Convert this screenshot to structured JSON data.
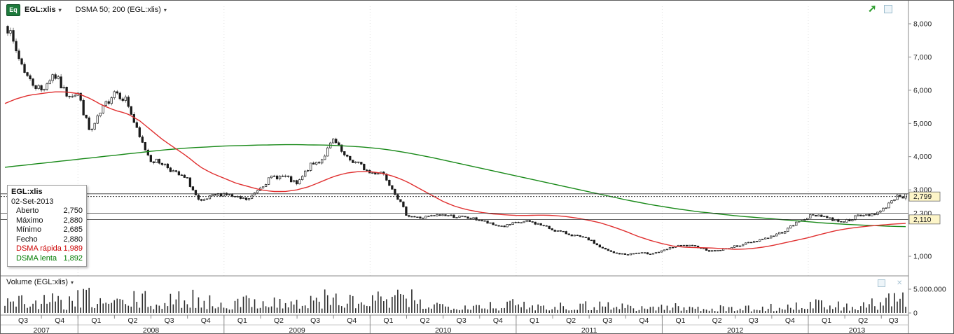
{
  "toolbar": {
    "badge": "Eq",
    "symbol": "EGL:xlis",
    "indicator": "DSMA 50; 200 (EGL:xlis)"
  },
  "icons": {
    "caret_down": "▾",
    "trend_arrow": "➚",
    "close": "✕"
  },
  "tooltip": {
    "title": "EGL:xlis",
    "date": "02-Set-2013",
    "rows": [
      {
        "label": "Aberto",
        "value": "2,750"
      },
      {
        "label": "Máximo",
        "value": "2,880"
      },
      {
        "label": "Mínimo",
        "value": "2,685"
      },
      {
        "label": "Fecho",
        "value": "2,880"
      },
      {
        "label": "DSMA rápida",
        "value": "1,989"
      },
      {
        "label": "DSMA lenta",
        "value": "1,892"
      }
    ]
  },
  "volume_header": {
    "label": "Volume (EGL:xlis)"
  },
  "chart_data": {
    "type": "candlestick",
    "symbol": "EGL:xlis",
    "interval": "weekly",
    "range": {
      "start": "2007-07",
      "end": "2013-09"
    },
    "seed": 7,
    "colors": {
      "sma_fast": "#e03030",
      "sma_slow": "#1a8a1a",
      "candle": "#1a1a1a",
      "grid": "#e0e0e0"
    },
    "y_axis": {
      "ticks": [
        {
          "v": 8000,
          "label": "8,000"
        },
        {
          "v": 7000,
          "label": "7,000"
        },
        {
          "v": 6000,
          "label": "6,000"
        },
        {
          "v": 5000,
          "label": "5,000"
        },
        {
          "v": 4000,
          "label": "4,000"
        },
        {
          "v": 3000,
          "label": "3,000"
        },
        {
          "v": 1000,
          "label": "1,000"
        }
      ]
    },
    "price_markers": [
      {
        "v": 2799,
        "label": "2,799",
        "boxed": true
      },
      {
        "v": 2300,
        "label": "2,300",
        "boxed": false
      },
      {
        "v": 2110,
        "label": "2,110",
        "boxed": true
      }
    ],
    "h_lines": [
      {
        "value": 2880,
        "style": "solid"
      },
      {
        "value": 2799,
        "style": "dotted"
      },
      {
        "value": 2300,
        "style": "solid"
      },
      {
        "value": 2110,
        "style": "solid"
      }
    ],
    "last_candle": {
      "open": 2750,
      "high": 2880,
      "low": 2685,
      "close": 2880
    },
    "monthly_close_anchors": [
      8100,
      7100,
      6300,
      6000,
      6500,
      5900,
      5900,
      4700,
      5400,
      6000,
      5700,
      4600,
      3900,
      3800,
      3500,
      3300,
      2600,
      2800,
      2900,
      2750,
      2700,
      3100,
      3400,
      3400,
      3150,
      3700,
      3900,
      4500,
      3950,
      3800,
      3500,
      3550,
      2950,
      2250,
      2150,
      2200,
      2250,
      2200,
      2150,
      2100,
      1950,
      1900,
      2000,
      2050,
      1950,
      1800,
      1700,
      1600,
      1500,
      1250,
      1100,
      1050,
      1100,
      1080,
      1150,
      1300,
      1320,
      1280,
      1150,
      1200,
      1300,
      1400,
      1500,
      1600,
      1750,
      2000,
      2200,
      2250,
      2100,
      2050,
      2200,
      2250,
      2350,
      2750,
      2880
    ],
    "sma_fast_monthly": [
      5600,
      5750,
      5850,
      5900,
      5950,
      5950,
      5900,
      5750,
      5550,
      5400,
      5300,
      5100,
      4800,
      4500,
      4250,
      4000,
      3700,
      3500,
      3350,
      3200,
      3100,
      3000,
      2950,
      2950,
      3000,
      3100,
      3250,
      3400,
      3500,
      3550,
      3550,
      3500,
      3400,
      3250,
      3050,
      2850,
      2650,
      2500,
      2400,
      2330,
      2280,
      2250,
      2230,
      2230,
      2240,
      2230,
      2200,
      2150,
      2080,
      2000,
      1880,
      1750,
      1600,
      1480,
      1380,
      1300,
      1270,
      1260,
      1250,
      1230,
      1210,
      1220,
      1260,
      1320,
      1400,
      1480,
      1560,
      1660,
      1750,
      1820,
      1870,
      1910,
      1940,
      1970,
      1989
    ],
    "sma_slow_monthly": [
      3680,
      3720,
      3760,
      3800,
      3840,
      3880,
      3920,
      3960,
      4000,
      4040,
      4080,
      4120,
      4160,
      4200,
      4230,
      4260,
      4280,
      4300,
      4320,
      4330,
      4340,
      4350,
      4355,
      4360,
      4360,
      4355,
      4350,
      4340,
      4320,
      4300,
      4270,
      4230,
      4180,
      4120,
      4050,
      3980,
      3900,
      3820,
      3740,
      3660,
      3580,
      3500,
      3420,
      3340,
      3260,
      3180,
      3100,
      3020,
      2940,
      2860,
      2780,
      2700,
      2630,
      2560,
      2500,
      2440,
      2390,
      2340,
      2300,
      2260,
      2220,
      2190,
      2160,
      2130,
      2100,
      2070,
      2040,
      2010,
      1985,
      1965,
      1945,
      1930,
      1915,
      1900,
      1892
    ],
    "volume_monthly_avg_millions": [
      2.5,
      2.8,
      2.2,
      2.0,
      2.4,
      1.8,
      2.6,
      3.0,
      2.2,
      2.4,
      2.0,
      2.8,
      2.2,
      1.8,
      2.4,
      3.2,
      2.6,
      2.0,
      2.2,
      1.8,
      2.4,
      2.8,
      2.4,
      2.0,
      1.8,
      2.2,
      2.6,
      3.0,
      2.4,
      2.0,
      2.4,
      2.8,
      2.6,
      3.0,
      2.2,
      1.8,
      1.6,
      1.8,
      1.6,
      1.8,
      1.6,
      1.4,
      1.8,
      1.6,
      1.4,
      1.6,
      1.4,
      1.6,
      1.4,
      1.8,
      1.6,
      1.4,
      1.2,
      1.0,
      1.4,
      1.2,
      1.0,
      1.2,
      1.0,
      0.9,
      1.0,
      0.9,
      1.0,
      1.1,
      1.2,
      1.4,
      1.8,
      1.6,
      1.4,
      1.2,
      1.4,
      1.6,
      1.8,
      2.6,
      2.2
    ],
    "volume_axis": {
      "top_label": "5.000.000",
      "zero_label": "0",
      "max": 5000000
    },
    "years": [
      {
        "label": "2007",
        "quarters": [
          "Q3",
          "Q4"
        ]
      },
      {
        "label": "2008",
        "quarters": [
          "Q1",
          "Q2",
          "Q3",
          "Q4"
        ]
      },
      {
        "label": "2009",
        "quarters": [
          "Q1",
          "Q2",
          "Q3",
          "Q4"
        ]
      },
      {
        "label": "2010",
        "quarters": [
          "Q1",
          "Q2",
          "Q3",
          "Q4"
        ]
      },
      {
        "label": "2011",
        "quarters": [
          "Q1",
          "Q2",
          "Q3",
          "Q4"
        ]
      },
      {
        "label": "2012",
        "quarters": [
          "Q1",
          "Q2",
          "Q3",
          "Q4"
        ]
      },
      {
        "label": "2013",
        "quarters": [
          "Q1",
          "Q2",
          "Q3"
        ]
      }
    ]
  }
}
